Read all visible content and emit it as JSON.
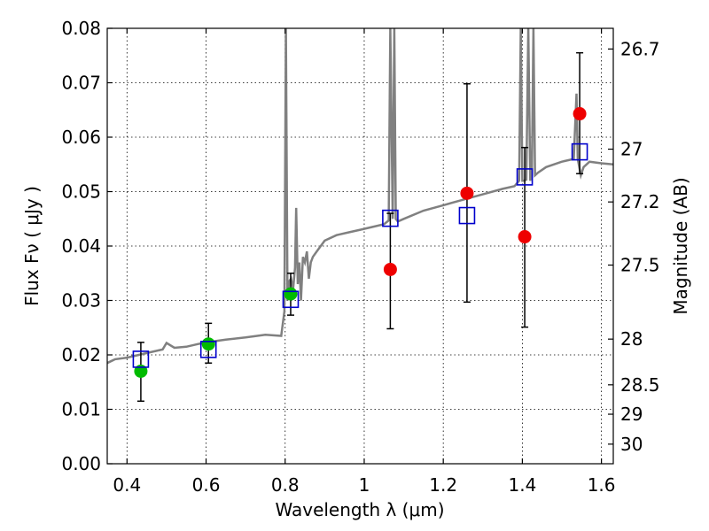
{
  "chart_data": {
    "type": "scatter",
    "title": "",
    "xlabel": "Wavelength  λ (μm)",
    "ylabel": "Flux  Fν  ( μJy )",
    "ylabel2": "Magnitude (AB)",
    "xlim": [
      0.35,
      1.63
    ],
    "ylim": [
      0,
      0.08
    ],
    "grid": true,
    "xticks": [
      0.4,
      0.6,
      0.8,
      1.0,
      1.2,
      1.4,
      1.6
    ],
    "xtick_labels": [
      "0.4",
      "0.6",
      "0.8",
      "1",
      "1.2",
      "1.4",
      "1.6"
    ],
    "yticks": [
      0.0,
      0.01,
      0.02,
      0.03,
      0.04,
      0.05,
      0.06,
      0.07,
      0.08
    ],
    "ytick_labels": [
      "0.00",
      "0.01",
      "0.02",
      "0.03",
      "0.04",
      "0.05",
      "0.06",
      "0.07",
      "0.08"
    ],
    "right_ticks": [
      {
        "label": "26.7",
        "flux": 0.0762
      },
      {
        "label": "27",
        "flux": 0.0578
      },
      {
        "label": "27.2",
        "flux": 0.0481
      },
      {
        "label": "27.5",
        "flux": 0.0365
      },
      {
        "label": "28",
        "flux": 0.0229
      },
      {
        "label": "28.5",
        "flux": 0.0145
      },
      {
        "label": "29",
        "flux": 0.0091
      },
      {
        "label": "30",
        "flux": 0.0036
      }
    ],
    "colors": {
      "model": "#808080",
      "green_points": "#00bb00",
      "red_points": "#ee0000",
      "squares": "#0000cc",
      "errorbars": "#000000"
    },
    "series": [
      {
        "marker": "circle",
        "color": "#00bb00",
        "points": [
          {
            "x": 0.435,
            "y": 0.017,
            "yerr_low": 0.0115,
            "yerr_high": 0.0223
          },
          {
            "x": 0.606,
            "y": 0.022,
            "yerr_low": 0.0185,
            "yerr_high": 0.0258
          },
          {
            "x": 0.814,
            "y": 0.0312,
            "yerr_low": 0.0273,
            "yerr_high": 0.035
          }
        ]
      },
      {
        "marker": "circle",
        "color": "#ee0000",
        "points": [
          {
            "x": 1.066,
            "y": 0.0357,
            "yerr_low": 0.0248,
            "yerr_high": 0.046
          },
          {
            "x": 1.26,
            "y": 0.0497,
            "yerr_low": 0.0297,
            "yerr_high": 0.0698
          },
          {
            "x": 1.406,
            "y": 0.0417,
            "yerr_low": 0.0251,
            "yerr_high": 0.0581
          },
          {
            "x": 1.545,
            "y": 0.0643,
            "yerr_low": 0.0533,
            "yerr_high": 0.0755
          }
        ]
      },
      {
        "marker": "square",
        "color": "#0000cc",
        "points": [
          {
            "x": 0.435,
            "y": 0.0192
          },
          {
            "x": 0.606,
            "y": 0.021
          },
          {
            "x": 0.814,
            "y": 0.0302
          },
          {
            "x": 1.066,
            "y": 0.0451
          },
          {
            "x": 1.26,
            "y": 0.0456
          },
          {
            "x": 1.406,
            "y": 0.0527
          },
          {
            "x": 1.545,
            "y": 0.0573
          }
        ]
      }
    ],
    "model_spectrum": {
      "x": [
        0.35,
        0.37,
        0.4,
        0.43,
        0.46,
        0.49,
        0.5,
        0.52,
        0.55,
        0.58,
        0.61,
        0.65,
        0.7,
        0.75,
        0.79,
        0.798,
        0.802,
        0.806,
        0.81,
        0.815,
        0.82,
        0.825,
        0.828,
        0.832,
        0.836,
        0.84,
        0.845,
        0.85,
        0.855,
        0.86,
        0.865,
        0.87,
        0.88,
        0.9,
        0.93,
        0.96,
        0.99,
        1.02,
        1.05,
        1.062,
        1.066,
        1.072,
        1.076,
        1.08,
        1.085,
        1.1,
        1.15,
        1.2,
        1.25,
        1.3,
        1.35,
        1.38,
        1.392,
        1.396,
        1.4,
        1.404,
        1.41,
        1.415,
        1.42,
        1.424,
        1.428,
        1.432,
        1.44,
        1.46,
        1.5,
        1.53,
        1.537,
        1.54,
        1.548,
        1.555,
        1.57,
        1.6,
        1.63
      ],
      "y": [
        0.0185,
        0.0192,
        0.0195,
        0.02,
        0.0205,
        0.021,
        0.0222,
        0.0213,
        0.0215,
        0.022,
        0.0224,
        0.0228,
        0.0232,
        0.0237,
        0.0235,
        0.028,
        0.08,
        0.03,
        0.0335,
        0.034,
        0.032,
        0.036,
        0.047,
        0.033,
        0.037,
        0.03,
        0.038,
        0.037,
        0.039,
        0.034,
        0.037,
        0.038,
        0.039,
        0.041,
        0.042,
        0.0425,
        0.043,
        0.0435,
        0.044,
        0.0447,
        0.08,
        0.045,
        0.08,
        0.045,
        0.0445,
        0.045,
        0.0465,
        0.0475,
        0.0485,
        0.0495,
        0.0505,
        0.051,
        0.052,
        0.08,
        0.052,
        0.052,
        0.0522,
        0.08,
        0.052,
        0.053,
        0.08,
        0.053,
        0.0535,
        0.0545,
        0.0555,
        0.056,
        0.068,
        0.056,
        0.053,
        0.0545,
        0.0555,
        0.0552,
        0.055
      ]
    }
  }
}
